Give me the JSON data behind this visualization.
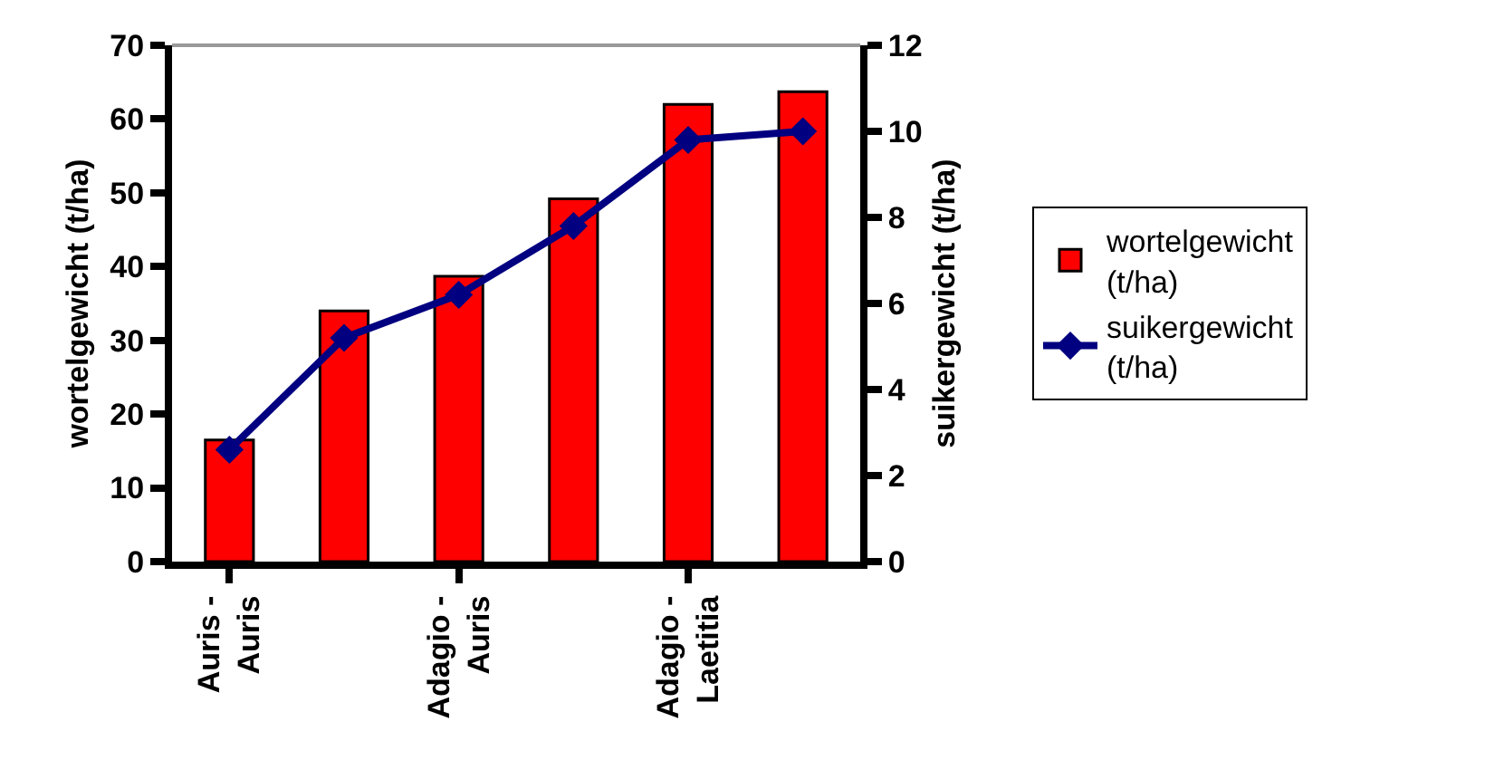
{
  "chart_data": {
    "type": "bar",
    "categories": [
      "Auris - Auris",
      null,
      "Adagio - Auris",
      null,
      "Adagio - Laetitia",
      null
    ],
    "ylabel": "wortelgewicht (t/ha)",
    "y2label": "suikergewicht (t/ha)",
    "ylim": [
      0,
      70
    ],
    "yticks": [
      0,
      10,
      20,
      30,
      40,
      50,
      60,
      70
    ],
    "y2lim": [
      0,
      12
    ],
    "y2ticks": [
      0,
      2,
      4,
      6,
      8,
      10,
      12
    ],
    "series": [
      {
        "name": "wortelgewicht (t/ha)",
        "color": "#ff0000",
        "values": [
          16.5,
          34,
          38.7,
          49.2,
          62,
          63.7
        ]
      },
      {
        "name": "suikergewicht (t/ha)",
        "type": "line",
        "axis": "y2",
        "color": "#000080",
        "marker": "diamond",
        "values": [
          2.6,
          5.2,
          6.2,
          7.8,
          9.8,
          10.0
        ]
      }
    ],
    "legend": "right"
  }
}
